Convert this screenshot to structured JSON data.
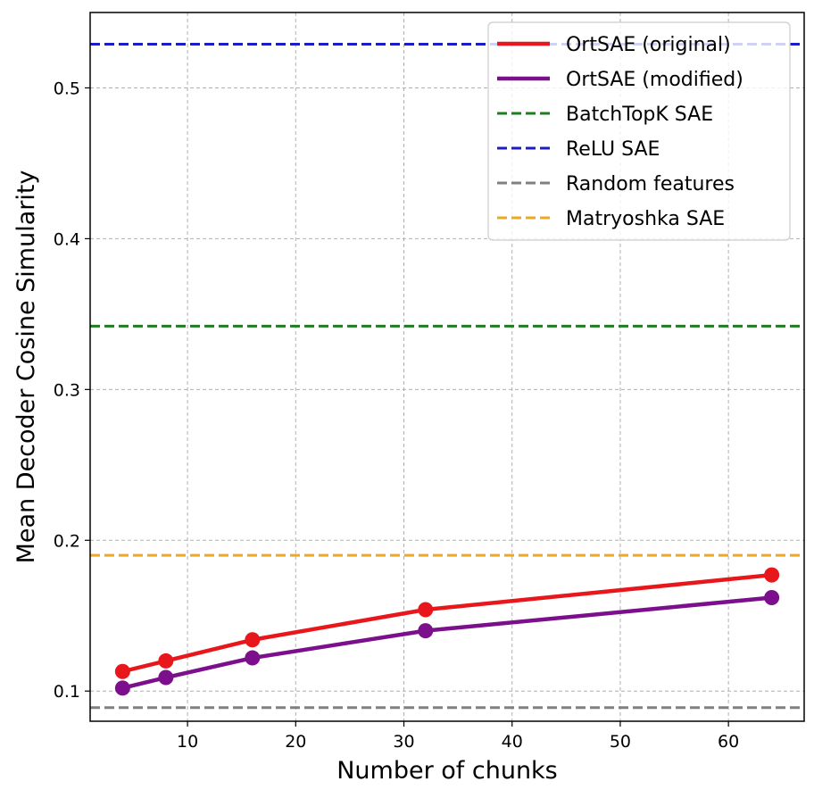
{
  "chart_data": {
    "type": "line",
    "title": "",
    "xlabel": "Number of chunks",
    "ylabel": "Mean Decoder Cosine Simularity",
    "xlim": [
      1.0,
      67.0
    ],
    "ylim": [
      0.08,
      0.55
    ],
    "xticks": [
      10,
      20,
      30,
      40,
      50,
      60
    ],
    "yticks": [
      0.1,
      0.2,
      0.3,
      0.4,
      0.5
    ],
    "xtick_labels": [
      "10",
      "20",
      "30",
      "40",
      "50",
      "60"
    ],
    "ytick_labels": [
      "0.1",
      "0.2",
      "0.3",
      "0.4",
      "0.5"
    ],
    "grid": true,
    "legend_position": "top-right",
    "series": [
      {
        "name": "OrtSAE (original)",
        "color": "#e8171c",
        "style": "solid-marker",
        "x": [
          4,
          8,
          16,
          32,
          64
        ],
        "y": [
          0.113,
          0.12,
          0.134,
          0.154,
          0.177
        ]
      },
      {
        "name": "OrtSAE (modified)",
        "color": "#7b0f8c",
        "style": "solid-marker",
        "x": [
          4,
          8,
          16,
          32,
          64
        ],
        "y": [
          0.102,
          0.109,
          0.122,
          0.14,
          0.162
        ]
      }
    ],
    "reference_lines": [
      {
        "name": "BatchTopK SAE",
        "color": "#1c7f1c",
        "y": 0.342
      },
      {
        "name": "ReLU SAE",
        "color": "#1c1cc8",
        "y": 0.529
      },
      {
        "name": "Random features",
        "color": "#808080",
        "y": 0.089
      },
      {
        "name": "Matryoshka SAE",
        "color": "#f0a81c",
        "y": 0.19
      }
    ],
    "legend_order": [
      "OrtSAE (original)",
      "OrtSAE (modified)",
      "BatchTopK SAE",
      "ReLU SAE",
      "Random features",
      "Matryoshka SAE"
    ]
  }
}
